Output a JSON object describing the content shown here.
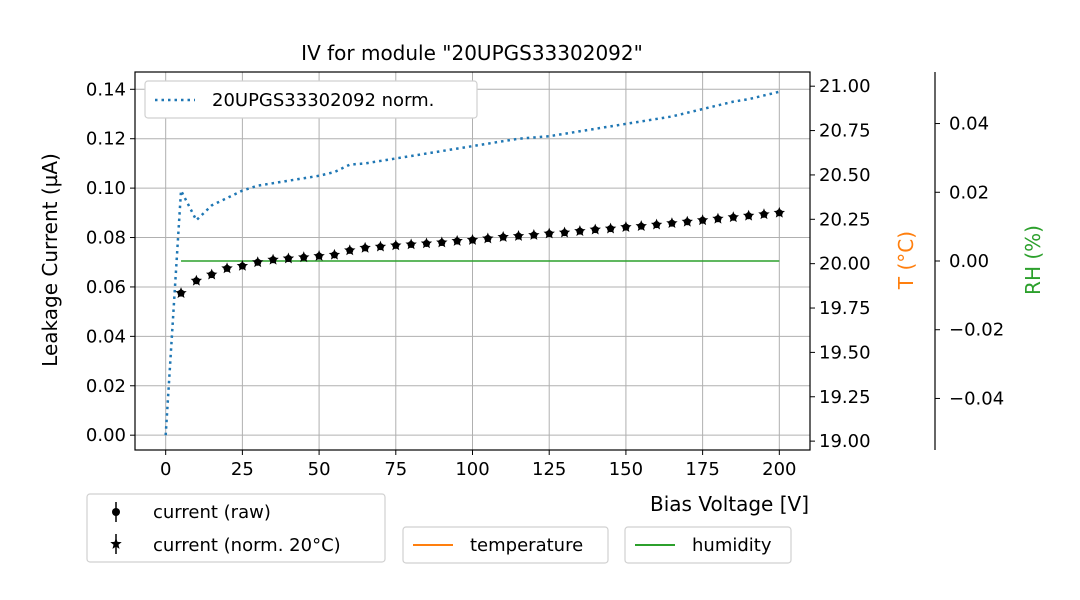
{
  "chart_data": {
    "type": "line",
    "title": "IV for module \"20UPGS33302092\"",
    "xlabel": "Bias Voltage [V]",
    "ylabel": "Leakage Current (µA)",
    "y2label": "T ($^\\circ$C)",
    "y2label_display": "T (°C)",
    "y3label": "RH (%)",
    "xlim": [
      -10,
      210
    ],
    "ylim": [
      -0.006,
      0.147
    ],
    "y2lim": [
      18.95,
      21.08
    ],
    "y3lim": [
      -0.055,
      0.055
    ],
    "x_ticks": [
      0,
      25,
      50,
      75,
      100,
      125,
      150,
      175,
      200
    ],
    "y_ticks": [
      0.0,
      0.02,
      0.04,
      0.06,
      0.08,
      0.1,
      0.12,
      0.14
    ],
    "y_tick_labels": [
      "0.00",
      "0.02",
      "0.04",
      "0.06",
      "0.08",
      "0.10",
      "0.12",
      "0.14"
    ],
    "y2_ticks": [
      19.0,
      19.25,
      19.5,
      19.75,
      20.0,
      20.25,
      20.5,
      20.75,
      21.0
    ],
    "y2_tick_labels": [
      "19.00",
      "19.25",
      "19.50",
      "19.75",
      "20.00",
      "20.25",
      "20.50",
      "20.75",
      "21.00"
    ],
    "y3_ticks": [
      -0.04,
      -0.02,
      0.0,
      0.02,
      0.04
    ],
    "y3_tick_labels": [
      "−0.04",
      "−0.02",
      "0.00",
      "0.02",
      "0.04"
    ],
    "grid": true,
    "colors": {
      "norm_line": "#1f77b4",
      "current": "#000000",
      "temperature": "#ff7f0e",
      "humidity": "#2ca02c"
    },
    "series": [
      {
        "name": "20UPGS33302092 norm.",
        "style": "dotted",
        "axis": "y",
        "x": [
          0,
          5,
          10,
          15,
          20,
          25,
          30,
          35,
          40,
          45,
          50,
          55,
          60,
          65,
          70,
          75,
          80,
          85,
          90,
          95,
          100,
          105,
          110,
          115,
          120,
          125,
          130,
          135,
          140,
          145,
          150,
          155,
          160,
          165,
          170,
          175,
          180,
          185,
          190,
          195,
          200
        ],
        "values": [
          0.0,
          0.099,
          0.087,
          0.093,
          0.096,
          0.099,
          0.101,
          0.102,
          0.103,
          0.104,
          0.105,
          0.1065,
          0.1095,
          0.11,
          0.111,
          0.112,
          0.113,
          0.114,
          0.115,
          0.116,
          0.117,
          0.118,
          0.119,
          0.12,
          0.1205,
          0.121,
          0.122,
          0.123,
          0.124,
          0.125,
          0.126,
          0.127,
          0.128,
          0.129,
          0.1305,
          0.132,
          0.1335,
          0.135,
          0.136,
          0.1375,
          0.139
        ]
      },
      {
        "name": "current (raw)",
        "style": "markers-circle",
        "axis": "y",
        "x": [
          5,
          10,
          15,
          20,
          25,
          30,
          35,
          40,
          45,
          50,
          55,
          60,
          65,
          70,
          75,
          80,
          85,
          90,
          95,
          100,
          105,
          110,
          115,
          120,
          125,
          130,
          135,
          140,
          145,
          150,
          155,
          160,
          165,
          170,
          175,
          180,
          185,
          190,
          195,
          200
        ],
        "values": [
          0.0575,
          0.0625,
          0.065,
          0.0675,
          0.0685,
          0.07,
          0.071,
          0.0715,
          0.072,
          0.0725,
          0.073,
          0.0748,
          0.0758,
          0.0763,
          0.0768,
          0.0772,
          0.0776,
          0.078,
          0.0786,
          0.079,
          0.0796,
          0.0802,
          0.0806,
          0.081,
          0.0816,
          0.082,
          0.0826,
          0.0832,
          0.0836,
          0.0842,
          0.0846,
          0.0852,
          0.0858,
          0.0864,
          0.087,
          0.0876,
          0.0882,
          0.0888,
          0.0894,
          0.09
        ]
      },
      {
        "name": "current (norm. 20$^\\circ$C)",
        "display_name": "current (norm. 20°C)",
        "style": "markers-star",
        "axis": "y",
        "x": [
          5,
          10,
          15,
          20,
          25,
          30,
          35,
          40,
          45,
          50,
          55,
          60,
          65,
          70,
          75,
          80,
          85,
          90,
          95,
          100,
          105,
          110,
          115,
          120,
          125,
          130,
          135,
          140,
          145,
          150,
          155,
          160,
          165,
          170,
          175,
          180,
          185,
          190,
          195,
          200
        ],
        "values": [
          0.0575,
          0.0625,
          0.065,
          0.0675,
          0.0685,
          0.07,
          0.071,
          0.0715,
          0.072,
          0.0725,
          0.073,
          0.0748,
          0.0758,
          0.0763,
          0.0768,
          0.0772,
          0.0776,
          0.078,
          0.0786,
          0.079,
          0.0796,
          0.0802,
          0.0806,
          0.081,
          0.0816,
          0.082,
          0.0826,
          0.0832,
          0.0836,
          0.0842,
          0.0846,
          0.0852,
          0.0858,
          0.0864,
          0.087,
          0.0876,
          0.0882,
          0.0888,
          0.0894,
          0.09
        ]
      },
      {
        "name": "temperature",
        "style": "solid",
        "axis": "y2",
        "x": [],
        "values": []
      },
      {
        "name": "humidity",
        "style": "solid",
        "axis": "y3",
        "x": [
          5,
          200
        ],
        "values": [
          0.0,
          0.0
        ]
      }
    ],
    "legends": {
      "upper": [
        "20UPGS33302092 norm."
      ],
      "lower_left": [
        "current (raw)",
        "current (norm. 20°C)"
      ],
      "lower_mid": [
        "temperature"
      ],
      "lower_right": [
        "humidity"
      ]
    }
  }
}
